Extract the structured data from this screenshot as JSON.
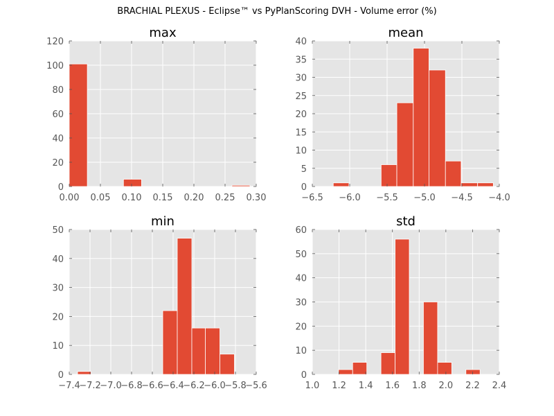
{
  "figure_title": "BRACHIAL PLEXUS - Eclipse™ vs PyPlanScoring DVH - Volume error (%)",
  "colors": {
    "bar": "#e24a33",
    "panel_bg": "#e5e5e5",
    "grid": "#ffffff",
    "tick_text": "#555555"
  },
  "chart_data": [
    {
      "type": "bar",
      "title": "max",
      "xlim": [
        0.0,
        0.3
      ],
      "ylim": [
        0,
        120
      ],
      "xticks": [
        "0.00",
        "0.05",
        "0.10",
        "0.15",
        "0.20",
        "0.25",
        "0.30"
      ],
      "yticks": [
        "0",
        "20",
        "40",
        "60",
        "80",
        "100",
        "120"
      ],
      "grid": true,
      "bins": [
        {
          "x0": 0.0,
          "x1": 0.029,
          "count": 101
        },
        {
          "x0": 0.029,
          "x1": 0.058,
          "count": 0
        },
        {
          "x0": 0.058,
          "x1": 0.087,
          "count": 0
        },
        {
          "x0": 0.087,
          "x1": 0.116,
          "count": 6
        },
        {
          "x0": 0.116,
          "x1": 0.145,
          "count": 0
        },
        {
          "x0": 0.145,
          "x1": 0.174,
          "count": 0
        },
        {
          "x0": 0.174,
          "x1": 0.203,
          "count": 0
        },
        {
          "x0": 0.203,
          "x1": 0.232,
          "count": 0
        },
        {
          "x0": 0.232,
          "x1": 0.261,
          "count": 0
        },
        {
          "x0": 0.261,
          "x1": 0.29,
          "count": 1
        }
      ]
    },
    {
      "type": "bar",
      "title": "mean",
      "xlim": [
        -6.5,
        -4.0
      ],
      "ylim": [
        0,
        40
      ],
      "xticks": [
        "−6.5",
        "−6.0",
        "−5.5",
        "−5.0",
        "−4.5",
        "−4.0"
      ],
      "yticks": [
        "0",
        "5",
        "10",
        "15",
        "20",
        "25",
        "30",
        "35",
        "40"
      ],
      "grid": true,
      "bins": [
        {
          "x0": -6.22,
          "x1": -6.01,
          "count": 1
        },
        {
          "x0": -6.01,
          "x1": -5.8,
          "count": 0
        },
        {
          "x0": -5.8,
          "x1": -5.58,
          "count": 0
        },
        {
          "x0": -5.58,
          "x1": -5.37,
          "count": 6
        },
        {
          "x0": -5.37,
          "x1": -5.15,
          "count": 23
        },
        {
          "x0": -5.15,
          "x1": -4.94,
          "count": 38
        },
        {
          "x0": -4.94,
          "x1": -4.72,
          "count": 32
        },
        {
          "x0": -4.72,
          "x1": -4.51,
          "count": 7
        },
        {
          "x0": -4.51,
          "x1": -4.29,
          "count": 1
        },
        {
          "x0": -4.29,
          "x1": -4.08,
          "count": 1
        }
      ]
    },
    {
      "type": "bar",
      "title": "min",
      "xlim": [
        -7.4,
        -5.6
      ],
      "ylim": [
        0,
        50
      ],
      "xticks": [
        "−7.4",
        "−7.2",
        "−7.0",
        "−6.8",
        "−6.6",
        "−6.4",
        "−6.2",
        "−6.0",
        "−5.8",
        "−5.6"
      ],
      "yticks": [
        "0",
        "10",
        "20",
        "30",
        "40",
        "50"
      ],
      "grid": true,
      "bins": [
        {
          "x0": -7.32,
          "x1": -7.19,
          "count": 1
        },
        {
          "x0": -7.19,
          "x1": -7.05,
          "count": 0
        },
        {
          "x0": -7.05,
          "x1": -6.91,
          "count": 0
        },
        {
          "x0": -6.91,
          "x1": -6.77,
          "count": 0
        },
        {
          "x0": -6.77,
          "x1": -6.64,
          "count": 0
        },
        {
          "x0": -6.64,
          "x1": -6.5,
          "count": 0
        },
        {
          "x0": -6.5,
          "x1": -6.36,
          "count": 22
        },
        {
          "x0": -6.36,
          "x1": -6.22,
          "count": 47
        },
        {
          "x0": -6.22,
          "x1": -6.09,
          "count": 16
        },
        {
          "x0": -6.09,
          "x1": -5.95,
          "count": 16
        },
        {
          "x0": -5.95,
          "x1": -5.81,
          "count": 7
        }
      ]
    },
    {
      "type": "bar",
      "title": "std",
      "xlim": [
        1.0,
        2.4
      ],
      "ylim": [
        0,
        60
      ],
      "xticks": [
        "1.0",
        "1.2",
        "1.4",
        "1.6",
        "1.8",
        "2.0",
        "2.2",
        "2.4"
      ],
      "yticks": [
        "0",
        "10",
        "20",
        "30",
        "40",
        "50",
        "60"
      ],
      "grid": true,
      "bins": [
        {
          "x0": 1.196,
          "x1": 1.302,
          "count": 2
        },
        {
          "x0": 1.302,
          "x1": 1.408,
          "count": 5
        },
        {
          "x0": 1.408,
          "x1": 1.514,
          "count": 0
        },
        {
          "x0": 1.514,
          "x1": 1.62,
          "count": 9
        },
        {
          "x0": 1.62,
          "x1": 1.726,
          "count": 56
        },
        {
          "x0": 1.726,
          "x1": 1.832,
          "count": 0
        },
        {
          "x0": 1.832,
          "x1": 1.938,
          "count": 30
        },
        {
          "x0": 1.938,
          "x1": 2.044,
          "count": 5
        },
        {
          "x0": 2.044,
          "x1": 2.15,
          "count": 0
        },
        {
          "x0": 2.15,
          "x1": 2.256,
          "count": 2
        }
      ]
    }
  ]
}
